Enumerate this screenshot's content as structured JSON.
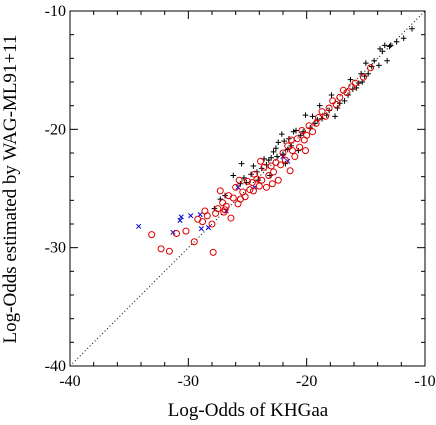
{
  "chart_data": {
    "type": "scatter",
    "title": "",
    "xlabel": "Log-Odds of KHGaa",
    "ylabel": "Log-Odds estimated by WAG-ML91+11",
    "xlim": [
      -40,
      -10
    ],
    "ylim": [
      -40,
      -10
    ],
    "xticks": [
      -40,
      -30,
      -20,
      -10
    ],
    "yticks": [
      -40,
      -30,
      -20,
      -10
    ],
    "tick_labels_x": [
      "-40",
      "-30",
      "-20",
      "-10"
    ],
    "tick_labels_y": [
      "-40",
      "-30",
      "-20",
      "-10"
    ],
    "grid": false,
    "legend": "none",
    "reference_line": {
      "style": "dotted",
      "from": [
        -40,
        -40
      ],
      "to": [
        -10,
        -10
      ]
    },
    "series": [
      {
        "marker": "plus",
        "color": "#000000",
        "points": [
          [
            -11.1,
            -11.5
          ],
          [
            -11.8,
            -12.3
          ],
          [
            -12.4,
            -12.6
          ],
          [
            -13.0,
            -13.0
          ],
          [
            -13.2,
            -14.2
          ],
          [
            -13.4,
            -12.9
          ],
          [
            -13.6,
            -13.4
          ],
          [
            -13.9,
            -14.6
          ],
          [
            -14.3,
            -14.2
          ],
          [
            -14.5,
            -14.7
          ],
          [
            -14.8,
            -15.3
          ],
          [
            -15.1,
            -15.5
          ],
          [
            -15.3,
            -16.0
          ],
          [
            -15.4,
            -15.3
          ],
          [
            -15.6,
            -16.1
          ],
          [
            -15.8,
            -16.5
          ],
          [
            -16.1,
            -16.6
          ],
          [
            -16.5,
            -17.1
          ],
          [
            -16.8,
            -17.6
          ],
          [
            -17.2,
            -17.8
          ],
          [
            -17.4,
            -18.2
          ],
          [
            -17.6,
            -18.9
          ],
          [
            -18.1,
            -18.4
          ],
          [
            -18.3,
            -18.8
          ],
          [
            -18.7,
            -19.1
          ],
          [
            -19.1,
            -19.2
          ],
          [
            -19.3,
            -19.5
          ],
          [
            -19.7,
            -19.9
          ],
          [
            -20.1,
            -18.8
          ],
          [
            -20.3,
            -20.2
          ],
          [
            -20.5,
            -20.5
          ],
          [
            -20.9,
            -20.1
          ],
          [
            -21.1,
            -20.2
          ],
          [
            -21.3,
            -21.4
          ],
          [
            -21.5,
            -20.8
          ],
          [
            -21.6,
            -21.7
          ],
          [
            -21.9,
            -21.0
          ],
          [
            -22.0,
            -22.1
          ],
          [
            -22.1,
            -20.4
          ],
          [
            -22.4,
            -21.1
          ],
          [
            -22.6,
            -21.6
          ],
          [
            -22.8,
            -21.9
          ],
          [
            -23.0,
            -22.4
          ],
          [
            -23.2,
            -22.6
          ],
          [
            -23.4,
            -23.0
          ],
          [
            -23.6,
            -22.5
          ],
          [
            -23.8,
            -23.3
          ],
          [
            -24.2,
            -23.6
          ],
          [
            -24.5,
            -23.1
          ],
          [
            -24.7,
            -23.8
          ],
          [
            -25.1,
            -24.5
          ],
          [
            -25.3,
            -24.1
          ],
          [
            -25.6,
            -24.6
          ],
          [
            -26.2,
            -23.9
          ],
          [
            -26.9,
            -25.6
          ],
          [
            -27.3,
            -25.9
          ],
          [
            -27.8,
            -26.7
          ],
          [
            -25.5,
            -22.9
          ],
          [
            -24.1,
            -24.3
          ],
          [
            -23.1,
            -23.9
          ],
          [
            -22.5,
            -22.3
          ],
          [
            -21.8,
            -22.9
          ],
          [
            -20.7,
            -21.8
          ],
          [
            -19.5,
            -18.9
          ],
          [
            -18.9,
            -18.0
          ],
          [
            -17.9,
            -17.1
          ],
          [
            -16.3,
            -15.8
          ],
          [
            -15.0,
            -14.4
          ],
          [
            -13.8,
            -13.2
          ],
          [
            -12.9,
            -12.9
          ]
        ]
      },
      {
        "marker": "cross",
        "color": "#0000dd",
        "points": [
          [
            -34.2,
            -28.2
          ],
          [
            -31.3,
            -28.7
          ],
          [
            -30.7,
            -27.7
          ],
          [
            -30.6,
            -27.4
          ],
          [
            -29.8,
            -27.3
          ],
          [
            -29.0,
            -27.2
          ],
          [
            -28.9,
            -28.4
          ],
          [
            -28.3,
            -28.3
          ],
          [
            -26.8,
            -26.9
          ],
          [
            -25.8,
            -24.9
          ],
          [
            -24.4,
            -24.9
          ],
          [
            -22.0,
            -22.3
          ],
          [
            -21.6,
            -22.7
          ]
        ]
      },
      {
        "marker": "circle",
        "color": "#dd0000",
        "points": [
          [
            -33.1,
            -28.9
          ],
          [
            -32.3,
            -30.1
          ],
          [
            -31.6,
            -30.3
          ],
          [
            -31.0,
            -28.8
          ],
          [
            -30.2,
            -28.6
          ],
          [
            -29.5,
            -29.5
          ],
          [
            -29.2,
            -27.6
          ],
          [
            -28.8,
            -27.8
          ],
          [
            -28.6,
            -26.9
          ],
          [
            -28.4,
            -27.3
          ],
          [
            -28.0,
            -28.0
          ],
          [
            -27.9,
            -30.4
          ],
          [
            -27.7,
            -27.1
          ],
          [
            -27.5,
            -26.7
          ],
          [
            -27.3,
            -25.2
          ],
          [
            -27.1,
            -26.2
          ],
          [
            -27.0,
            -27.0
          ],
          [
            -26.8,
            -26.5
          ],
          [
            -26.6,
            -25.6
          ],
          [
            -26.4,
            -27.5
          ],
          [
            -26.2,
            -25.8
          ],
          [
            -26.0,
            -24.9
          ],
          [
            -25.8,
            -26.3
          ],
          [
            -25.6,
            -25.9
          ],
          [
            -25.4,
            -25.3
          ],
          [
            -25.2,
            -25.7
          ],
          [
            -25.0,
            -24.4
          ],
          [
            -24.8,
            -25.1
          ],
          [
            -24.6,
            -24.5
          ],
          [
            -24.4,
            -23.8
          ],
          [
            -24.2,
            -24.2
          ],
          [
            -24.0,
            -24.8
          ],
          [
            -23.8,
            -24.3
          ],
          [
            -23.6,
            -23.2
          ],
          [
            -23.4,
            -24.9
          ],
          [
            -23.2,
            -23.9
          ],
          [
            -23.0,
            -23.1
          ],
          [
            -22.8,
            -23.6
          ],
          [
            -22.6,
            -22.8
          ],
          [
            -22.4,
            -24.3
          ],
          [
            -22.2,
            -23.0
          ],
          [
            -22.0,
            -22.0
          ],
          [
            -21.8,
            -22.6
          ],
          [
            -21.6,
            -21.4
          ],
          [
            -21.4,
            -23.5
          ],
          [
            -21.2,
            -21.8
          ],
          [
            -21.0,
            -22.3
          ],
          [
            -20.8,
            -20.8
          ],
          [
            -20.6,
            -21.5
          ],
          [
            -20.4,
            -20.1
          ],
          [
            -20.2,
            -20.9
          ],
          [
            -20.0,
            -20.5
          ],
          [
            -19.8,
            -19.7
          ],
          [
            -19.5,
            -20.2
          ],
          [
            -19.2,
            -19.5
          ],
          [
            -19.0,
            -19.0
          ],
          [
            -18.7,
            -18.5
          ],
          [
            -18.4,
            -18.9
          ],
          [
            -18.1,
            -18.2
          ],
          [
            -17.8,
            -17.6
          ],
          [
            -17.5,
            -17.9
          ],
          [
            -17.2,
            -17.3
          ],
          [
            -16.9,
            -16.7
          ],
          [
            -16.6,
            -16.9
          ],
          [
            -16.2,
            -16.4
          ],
          [
            -15.9,
            -16.1
          ],
          [
            -15.2,
            -15.6
          ],
          [
            -14.6,
            -14.8
          ],
          [
            -24.5,
            -25.2
          ],
          [
            -23.9,
            -22.7
          ],
          [
            -25.7,
            -24.3
          ],
          [
            -26.9,
            -26.8
          ],
          [
            -22.9,
            -24.6
          ],
          [
            -21.3,
            -20.9
          ],
          [
            -20.1,
            -21.8
          ]
        ]
      }
    ]
  }
}
